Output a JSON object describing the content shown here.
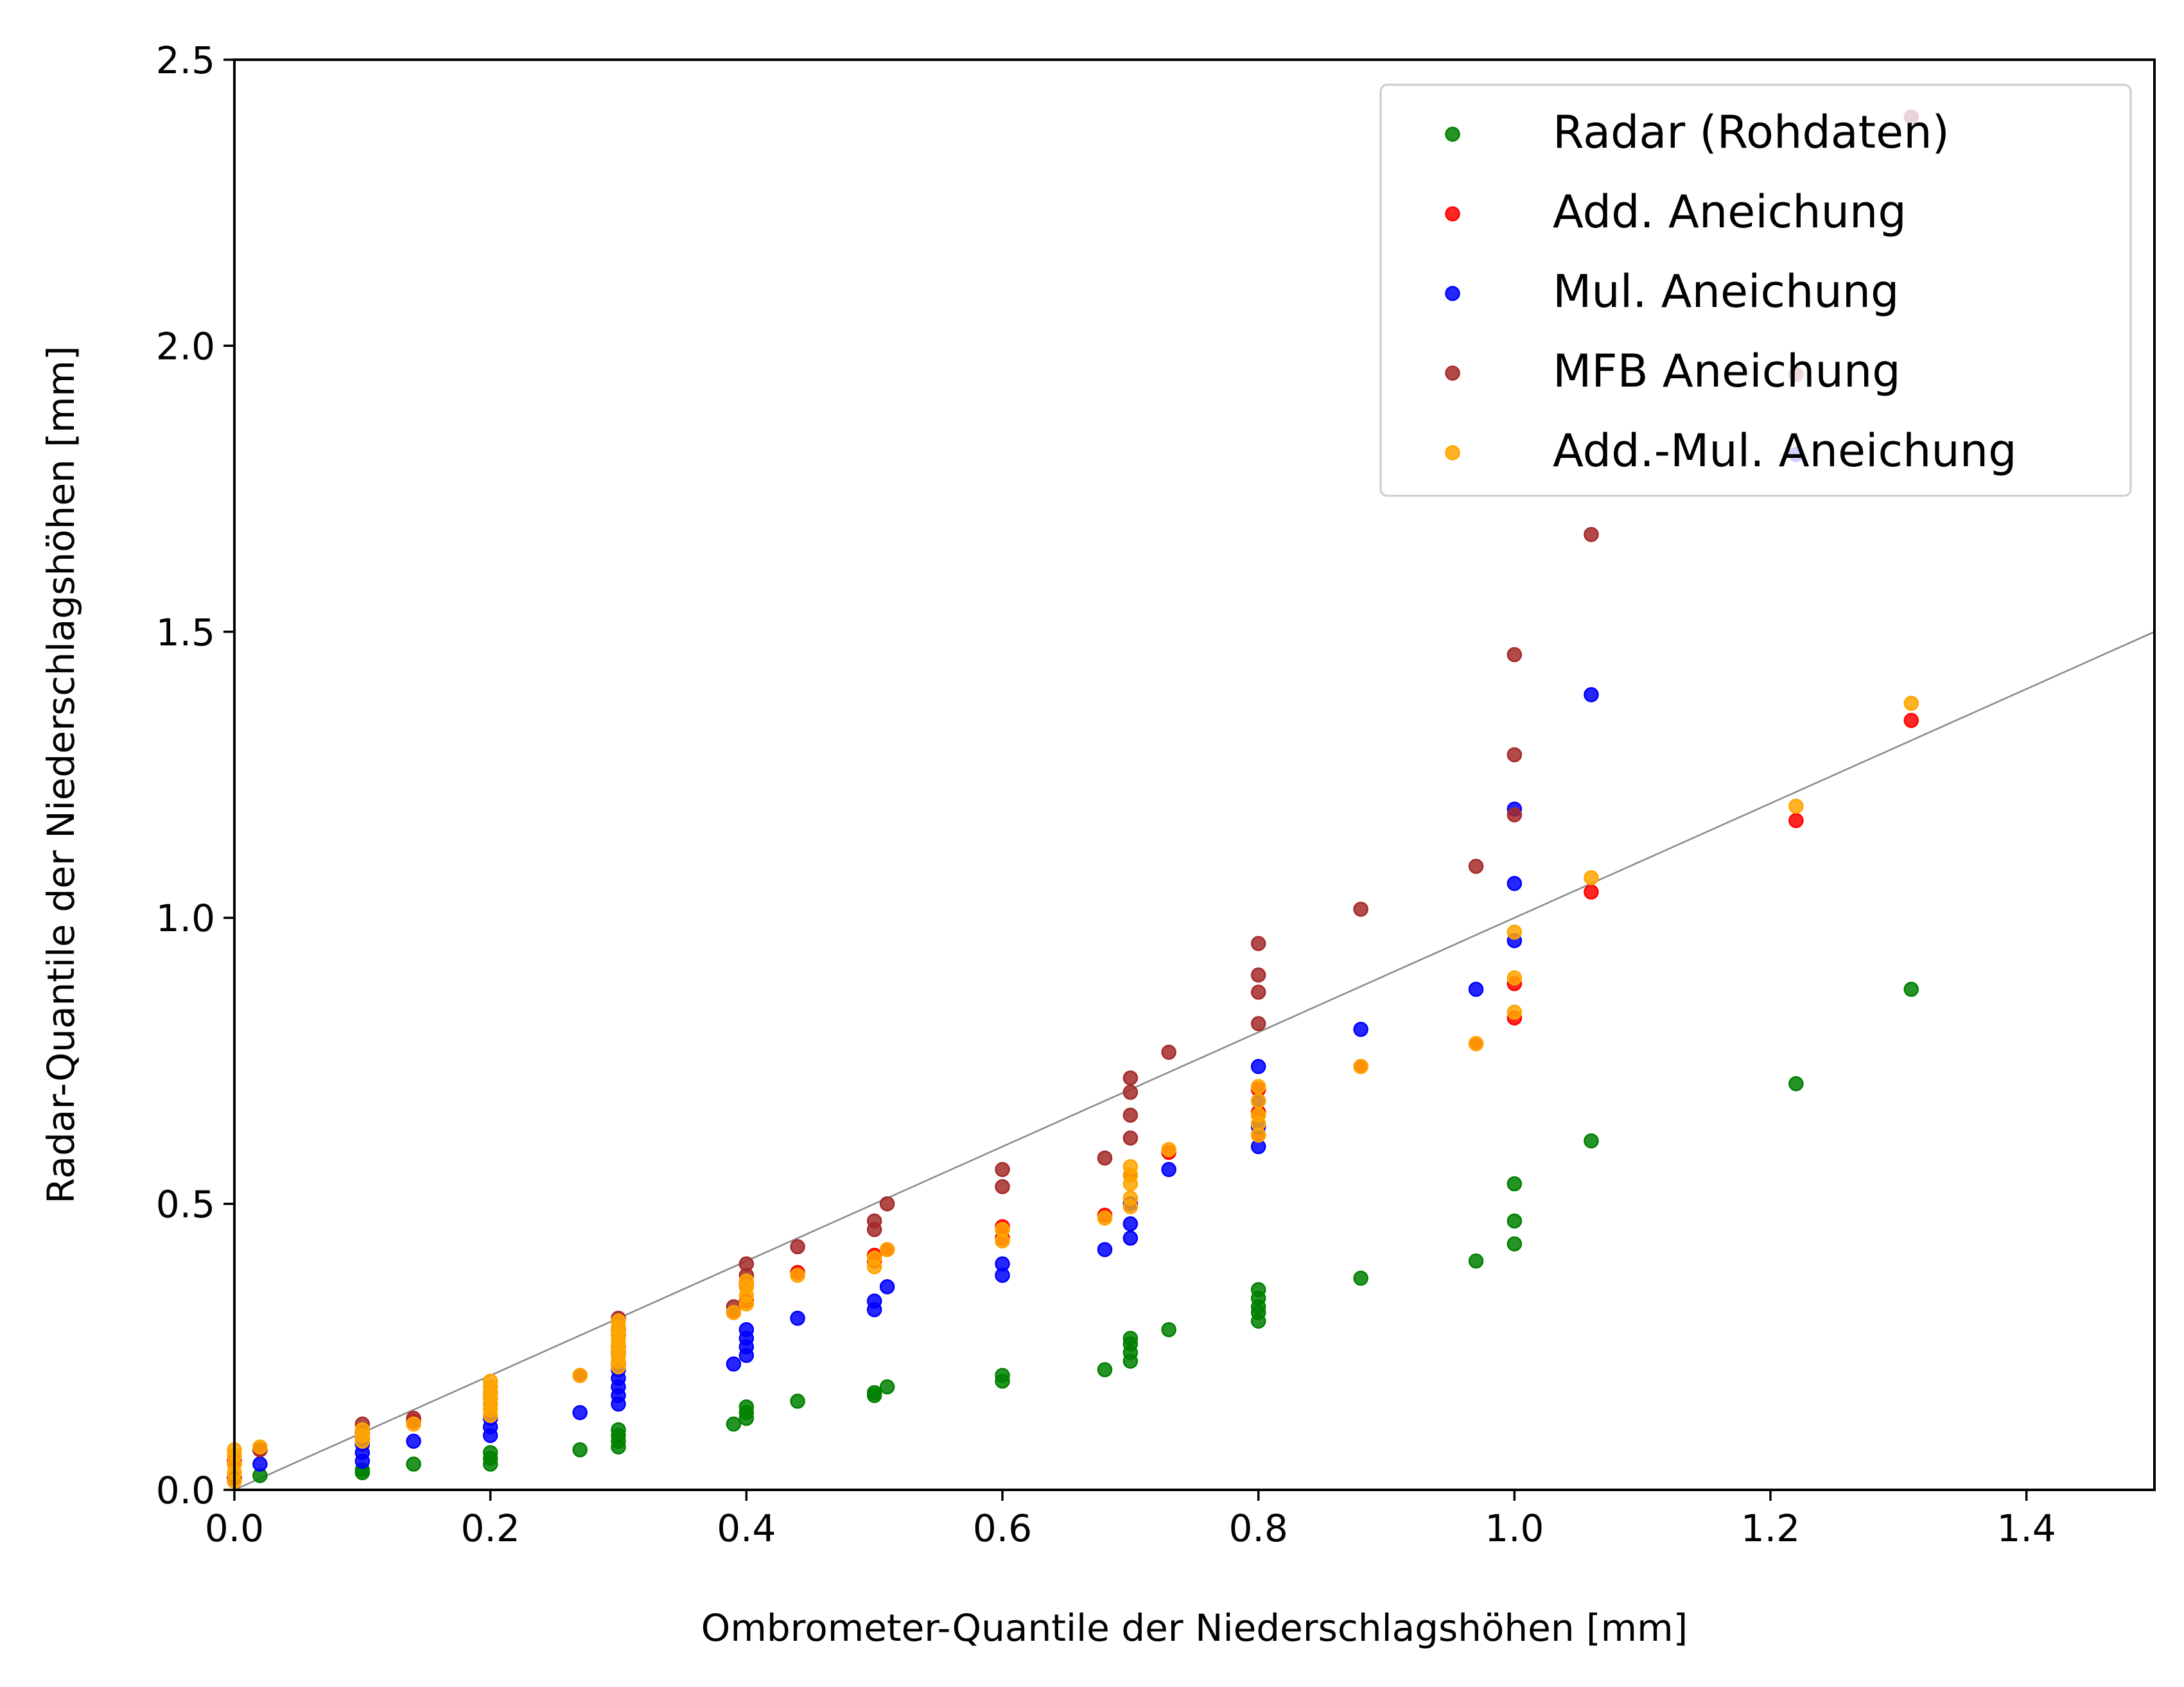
{
  "chart_data": {
    "type": "scatter",
    "xlabel": "Ombrometer-Quantile der Niederschlagshöhen [mm]",
    "ylabel": "Radar-Quantile der Niederschlagshöhen [mm]",
    "xlim": [
      0,
      1.5
    ],
    "ylim": [
      0,
      2.5
    ],
    "xticks": [
      "0.0",
      "0.2",
      "0.4",
      "0.6",
      "0.8",
      "1.0",
      "1.2",
      "1.4"
    ],
    "yticks": [
      "0.0",
      "0.5",
      "1.0",
      "1.5",
      "2.0",
      "2.5"
    ],
    "grid": false,
    "legend_position": "upper-right",
    "reference_line": {
      "x": [
        0,
        1.5
      ],
      "y": [
        0,
        1.5
      ],
      "color": "#888888"
    },
    "series": [
      {
        "name": "Radar (Rohdaten)",
        "color": "#008000",
        "points": [
          [
            0.02,
            0.025
          ],
          [
            0.1,
            0.03
          ],
          [
            0.1,
            0.035
          ],
          [
            0.14,
            0.045
          ],
          [
            0.2,
            0.045
          ],
          [
            0.2,
            0.055
          ],
          [
            0.2,
            0.065
          ],
          [
            0.27,
            0.07
          ],
          [
            0.3,
            0.075
          ],
          [
            0.3,
            0.085
          ],
          [
            0.3,
            0.095
          ],
          [
            0.3,
            0.105
          ],
          [
            0.39,
            0.115
          ],
          [
            0.4,
            0.125
          ],
          [
            0.4,
            0.135
          ],
          [
            0.4,
            0.145
          ],
          [
            0.44,
            0.155
          ],
          [
            0.5,
            0.165
          ],
          [
            0.5,
            0.17
          ],
          [
            0.51,
            0.18
          ],
          [
            0.6,
            0.19
          ],
          [
            0.6,
            0.2
          ],
          [
            0.68,
            0.21
          ],
          [
            0.7,
            0.225
          ],
          [
            0.7,
            0.24
          ],
          [
            0.7,
            0.255
          ],
          [
            0.7,
            0.265
          ],
          [
            0.73,
            0.28
          ],
          [
            0.8,
            0.295
          ],
          [
            0.8,
            0.31
          ],
          [
            0.8,
            0.32
          ],
          [
            0.8,
            0.335
          ],
          [
            0.8,
            0.35
          ],
          [
            0.88,
            0.37
          ],
          [
            0.97,
            0.4
          ],
          [
            1.0,
            0.43
          ],
          [
            1.0,
            0.47
          ],
          [
            1.0,
            0.535
          ],
          [
            1.06,
            0.61
          ],
          [
            1.22,
            0.71
          ],
          [
            1.31,
            0.875
          ]
        ]
      },
      {
        "name": "Add. Aneichung",
        "color": "#ff0000",
        "points": [
          [
            0.0,
            0.02
          ],
          [
            0.0,
            0.05
          ],
          [
            0.02,
            0.07
          ],
          [
            0.1,
            0.09
          ],
          [
            0.1,
            0.1
          ],
          [
            0.14,
            0.12
          ],
          [
            0.2,
            0.15
          ],
          [
            0.2,
            0.17
          ],
          [
            0.27,
            0.2
          ],
          [
            0.3,
            0.22
          ],
          [
            0.3,
            0.25
          ],
          [
            0.3,
            0.28
          ],
          [
            0.39,
            0.31
          ],
          [
            0.4,
            0.33
          ],
          [
            0.4,
            0.36
          ],
          [
            0.44,
            0.38
          ],
          [
            0.5,
            0.4
          ],
          [
            0.5,
            0.41
          ],
          [
            0.51,
            0.42
          ],
          [
            0.6,
            0.44
          ],
          [
            0.6,
            0.46
          ],
          [
            0.68,
            0.48
          ],
          [
            0.7,
            0.5
          ],
          [
            0.7,
            0.55
          ],
          [
            0.73,
            0.59
          ],
          [
            0.8,
            0.62
          ],
          [
            0.8,
            0.66
          ],
          [
            0.8,
            0.7
          ],
          [
            0.88,
            0.74
          ],
          [
            0.97,
            0.78
          ],
          [
            1.0,
            0.825
          ],
          [
            1.0,
            0.885
          ],
          [
            1.06,
            1.045
          ],
          [
            1.22,
            1.17
          ],
          [
            1.31,
            1.345
          ]
        ]
      },
      {
        "name": "Mul. Aneichung",
        "color": "#0000ff",
        "points": [
          [
            0.0,
            0.02
          ],
          [
            0.02,
            0.045
          ],
          [
            0.1,
            0.05
          ],
          [
            0.1,
            0.065
          ],
          [
            0.1,
            0.08
          ],
          [
            0.14,
            0.085
          ],
          [
            0.2,
            0.095
          ],
          [
            0.2,
            0.11
          ],
          [
            0.2,
            0.125
          ],
          [
            0.27,
            0.135
          ],
          [
            0.3,
            0.15
          ],
          [
            0.3,
            0.165
          ],
          [
            0.3,
            0.18
          ],
          [
            0.3,
            0.195
          ],
          [
            0.3,
            0.21
          ],
          [
            0.39,
            0.22
          ],
          [
            0.4,
            0.235
          ],
          [
            0.4,
            0.25
          ],
          [
            0.4,
            0.265
          ],
          [
            0.4,
            0.28
          ],
          [
            0.44,
            0.3
          ],
          [
            0.5,
            0.315
          ],
          [
            0.5,
            0.33
          ],
          [
            0.51,
            0.355
          ],
          [
            0.6,
            0.375
          ],
          [
            0.6,
            0.395
          ],
          [
            0.68,
            0.42
          ],
          [
            0.7,
            0.44
          ],
          [
            0.7,
            0.465
          ],
          [
            0.7,
            0.5
          ],
          [
            0.73,
            0.56
          ],
          [
            0.8,
            0.6
          ],
          [
            0.8,
            0.635
          ],
          [
            0.8,
            0.68
          ],
          [
            0.8,
            0.74
          ],
          [
            0.88,
            0.805
          ],
          [
            0.97,
            0.875
          ],
          [
            1.0,
            0.96
          ],
          [
            1.0,
            1.06
          ],
          [
            1.0,
            1.19
          ],
          [
            1.06,
            1.39
          ],
          [
            1.22,
            1.81
          ],
          [
            1.31,
            2.4
          ]
        ]
      },
      {
        "name": "MFB Aneichung",
        "color": "#a52a2a",
        "points": [
          [
            0.0,
            0.02
          ],
          [
            0.02,
            0.07
          ],
          [
            0.1,
            0.1
          ],
          [
            0.1,
            0.115
          ],
          [
            0.14,
            0.125
          ],
          [
            0.2,
            0.16
          ],
          [
            0.2,
            0.18
          ],
          [
            0.27,
            0.2
          ],
          [
            0.3,
            0.24
          ],
          [
            0.3,
            0.27
          ],
          [
            0.3,
            0.3
          ],
          [
            0.39,
            0.32
          ],
          [
            0.4,
            0.355
          ],
          [
            0.4,
            0.375
          ],
          [
            0.4,
            0.395
          ],
          [
            0.44,
            0.425
          ],
          [
            0.5,
            0.455
          ],
          [
            0.5,
            0.47
          ],
          [
            0.51,
            0.5
          ],
          [
            0.6,
            0.53
          ],
          [
            0.6,
            0.56
          ],
          [
            0.68,
            0.58
          ],
          [
            0.7,
            0.615
          ],
          [
            0.7,
            0.655
          ],
          [
            0.7,
            0.695
          ],
          [
            0.7,
            0.72
          ],
          [
            0.73,
            0.765
          ],
          [
            0.8,
            0.815
          ],
          [
            0.8,
            0.87
          ],
          [
            0.8,
            0.9
          ],
          [
            0.8,
            0.955
          ],
          [
            0.88,
            1.015
          ],
          [
            0.97,
            1.09
          ],
          [
            1.0,
            1.18
          ],
          [
            1.0,
            1.285
          ],
          [
            1.0,
            1.46
          ],
          [
            1.06,
            1.67
          ],
          [
            1.22,
            1.95
          ],
          [
            1.31,
            2.4
          ]
        ]
      },
      {
        "name": "Add.-Mul. Aneichung",
        "color": "#ffa500",
        "points": [
          [
            0.0,
            0.015
          ],
          [
            0.0,
            0.03
          ],
          [
            0.0,
            0.045
          ],
          [
            0.0,
            0.06
          ],
          [
            0.0,
            0.07
          ],
          [
            0.02,
            0.075
          ],
          [
            0.1,
            0.085
          ],
          [
            0.1,
            0.095
          ],
          [
            0.1,
            0.105
          ],
          [
            0.14,
            0.115
          ],
          [
            0.2,
            0.13
          ],
          [
            0.2,
            0.14
          ],
          [
            0.2,
            0.15
          ],
          [
            0.2,
            0.16
          ],
          [
            0.2,
            0.17
          ],
          [
            0.2,
            0.18
          ],
          [
            0.2,
            0.19
          ],
          [
            0.27,
            0.2
          ],
          [
            0.3,
            0.215
          ],
          [
            0.3,
            0.225
          ],
          [
            0.3,
            0.235
          ],
          [
            0.3,
            0.245
          ],
          [
            0.3,
            0.255
          ],
          [
            0.3,
            0.265
          ],
          [
            0.3,
            0.275
          ],
          [
            0.3,
            0.285
          ],
          [
            0.3,
            0.295
          ],
          [
            0.39,
            0.31
          ],
          [
            0.4,
            0.325
          ],
          [
            0.4,
            0.34
          ],
          [
            0.4,
            0.355
          ],
          [
            0.4,
            0.365
          ],
          [
            0.44,
            0.375
          ],
          [
            0.5,
            0.39
          ],
          [
            0.5,
            0.405
          ],
          [
            0.51,
            0.42
          ],
          [
            0.6,
            0.435
          ],
          [
            0.6,
            0.455
          ],
          [
            0.68,
            0.475
          ],
          [
            0.7,
            0.495
          ],
          [
            0.7,
            0.51
          ],
          [
            0.7,
            0.535
          ],
          [
            0.7,
            0.55
          ],
          [
            0.7,
            0.565
          ],
          [
            0.73,
            0.595
          ],
          [
            0.8,
            0.62
          ],
          [
            0.8,
            0.64
          ],
          [
            0.8,
            0.655
          ],
          [
            0.8,
            0.68
          ],
          [
            0.8,
            0.705
          ],
          [
            0.88,
            0.74
          ],
          [
            0.97,
            0.78
          ],
          [
            1.0,
            0.835
          ],
          [
            1.0,
            0.895
          ],
          [
            1.0,
            0.975
          ],
          [
            1.06,
            1.07
          ],
          [
            1.22,
            1.195
          ],
          [
            1.31,
            1.375
          ]
        ]
      }
    ]
  }
}
